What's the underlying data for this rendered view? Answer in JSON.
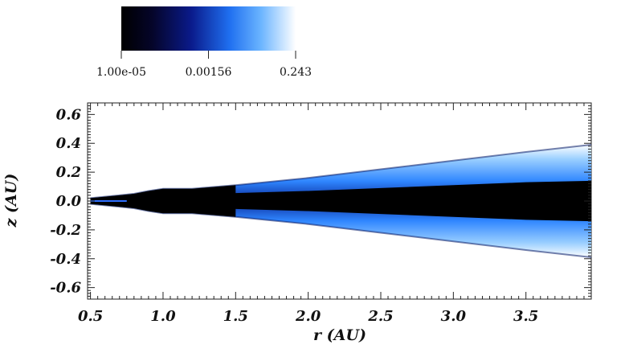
{
  "chart_data": {
    "type": "heatmap",
    "xlabel": "r (AU)",
    "ylabel": "z (AU)",
    "xlim": [
      0.48,
      3.95
    ],
    "ylim": [
      -0.68,
      0.68
    ],
    "x_ticks": [
      "0.5",
      "1.0",
      "1.5",
      "2.0",
      "2.5",
      "3.0",
      "3.5"
    ],
    "x_tick_values": [
      0.5,
      1.0,
      1.5,
      2.0,
      2.5,
      3.0,
      3.5
    ],
    "y_ticks": [
      "0.6",
      "0.4",
      "0.2",
      "0.0",
      "-0.2",
      "-0.4",
      "-0.6"
    ],
    "y_tick_values": [
      0.6,
      0.4,
      0.2,
      0.0,
      -0.2,
      -0.4,
      -0.6
    ],
    "colorbar": {
      "scale": "log",
      "min": 1e-05,
      "max": 0.243,
      "tick_labels": [
        "1.00e-05",
        "0.00156",
        "0.243"
      ],
      "tick_values": [
        1e-05,
        0.00156,
        0.243
      ],
      "colors": [
        "#000000",
        "#0a0f4a",
        "#1f5fd6",
        "#3d9bff",
        "#ffffff"
      ]
    },
    "disk_surface": {
      "r": [
        0.5,
        0.6,
        0.7,
        0.8,
        0.9,
        1.0,
        1.1,
        1.2,
        1.5,
        2.0,
        2.5,
        3.0,
        3.5,
        3.95
      ],
      "z_outer": [
        0.02,
        0.03,
        0.04,
        0.05,
        0.07,
        0.085,
        0.085,
        0.085,
        0.11,
        0.16,
        0.22,
        0.28,
        0.34,
        0.39
      ],
      "z_dark_core": [
        0.015,
        0.015,
        0.025,
        0.035,
        0.05,
        0.06,
        0.06,
        0.05,
        0.055,
        0.07,
        0.09,
        0.11,
        0.13,
        0.14
      ]
    }
  }
}
